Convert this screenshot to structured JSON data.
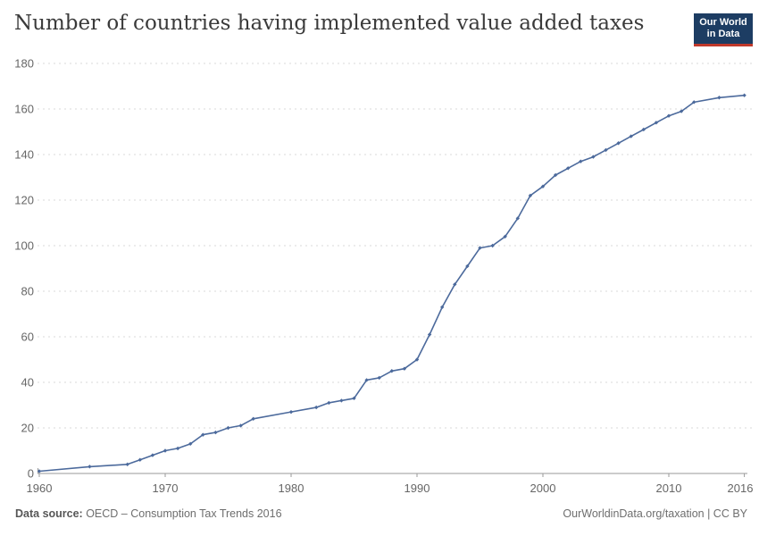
{
  "header": {
    "title": "Number of countries having implemented value added taxes",
    "logo": {
      "line1": "Our World",
      "line2": "in Data"
    }
  },
  "chart_data": {
    "type": "line",
    "title": "Number of countries having implemented value added taxes",
    "xlabel": "",
    "ylabel": "",
    "legend": "none",
    "grid": "horizontal dashed",
    "xlim": [
      1959.9,
      2016.5
    ],
    "ylim": [
      0,
      180
    ],
    "x_ticks": [
      1960,
      1970,
      1980,
      1990,
      2000,
      2010,
      2016
    ],
    "y_ticks": [
      0,
      20,
      40,
      60,
      80,
      100,
      120,
      140,
      160,
      180
    ],
    "series": [
      {
        "name": "Number of countries having implemented value added taxes",
        "marker": "diamond",
        "points": [
          [
            1960,
            1
          ],
          [
            1964,
            3
          ],
          [
            1967,
            4
          ],
          [
            1968,
            6
          ],
          [
            1969,
            8
          ],
          [
            1970,
            10
          ],
          [
            1971,
            11
          ],
          [
            1972,
            13
          ],
          [
            1973,
            17
          ],
          [
            1974,
            18
          ],
          [
            1975,
            20
          ],
          [
            1976,
            21
          ],
          [
            1977,
            24
          ],
          [
            1980,
            27
          ],
          [
            1982,
            29
          ],
          [
            1983,
            31
          ],
          [
            1984,
            32
          ],
          [
            1985,
            33
          ],
          [
            1986,
            41
          ],
          [
            1987,
            42
          ],
          [
            1988,
            45
          ],
          [
            1989,
            46
          ],
          [
            1990,
            50
          ],
          [
            1991,
            61
          ],
          [
            1992,
            73
          ],
          [
            1993,
            83
          ],
          [
            1994,
            91
          ],
          [
            1995,
            99
          ],
          [
            1996,
            100
          ],
          [
            1997,
            104
          ],
          [
            1998,
            112
          ],
          [
            1999,
            122
          ],
          [
            2000,
            126
          ],
          [
            2001,
            131
          ],
          [
            2002,
            134
          ],
          [
            2003,
            137
          ],
          [
            2004,
            139
          ],
          [
            2005,
            142
          ],
          [
            2006,
            145
          ],
          [
            2007,
            148
          ],
          [
            2008,
            151
          ],
          [
            2009,
            154
          ],
          [
            2010,
            157
          ],
          [
            2011,
            159
          ],
          [
            2012,
            163
          ],
          [
            2014,
            165
          ],
          [
            2016,
            166
          ]
        ]
      }
    ],
    "colors": {
      "line": "#4C6A9C",
      "grid": "#d9d9d9",
      "axis": "#9a9a9a",
      "tick_label": "#666666",
      "title": "#3a3a3a",
      "logo_bg": "#1d3d63",
      "logo_bar": "#c0392b"
    }
  },
  "footer": {
    "datasource_label": "Data source:",
    "datasource_value": " OECD – Consumption Tax Trends 2016",
    "link": "OurWorldinData.org/taxation | CC BY"
  }
}
